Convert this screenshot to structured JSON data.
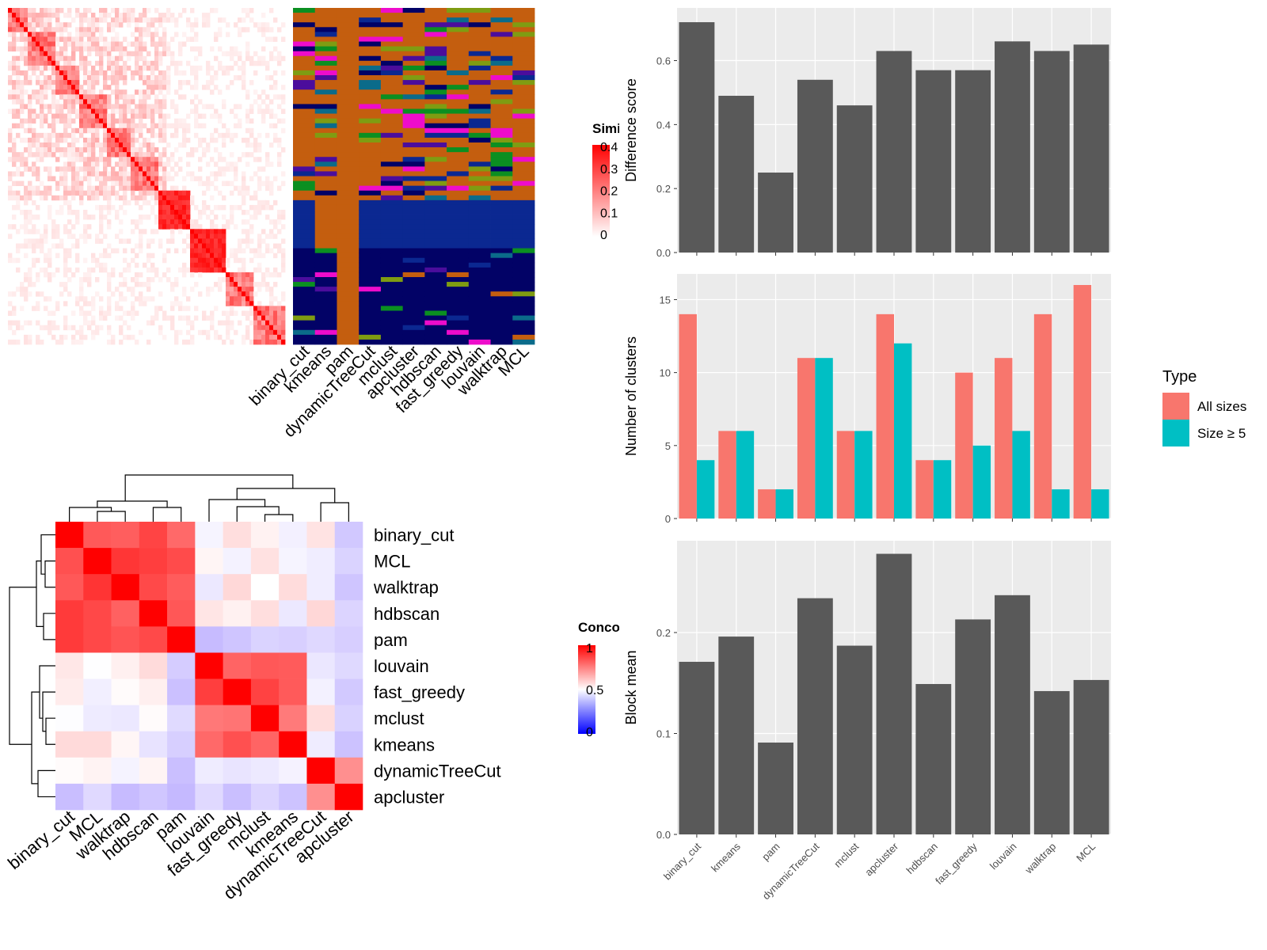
{
  "methods": [
    "binary_cut",
    "kmeans",
    "pam",
    "dynamicTreeCut",
    "mclust",
    "apcluster",
    "hdbscan",
    "fast_greedy",
    "louvain",
    "walktrap",
    "MCL"
  ],
  "colors": {
    "bar_gray": "#595959",
    "panel_bg": "#ebebeb",
    "grid": "#ffffff",
    "all_sizes": "#f8766d",
    "size_ge5": "#00bfc4",
    "heat_red": "#ff0000",
    "heat_blue": "#0000ff",
    "cluster_orange": "#c45e0f",
    "cluster_olive": "#7f9c12",
    "cluster_navy": "#0b2891",
    "cluster_darknavy": "#020266",
    "cluster_magenta": "#ee0ccb",
    "cluster_purple": "#4b0d9c",
    "cluster_teal": "#0b6b8a",
    "cluster_green": "#0b8f21"
  },
  "similarity_heatmap": {
    "legend_title": "Similarity",
    "legend_ticks": [
      "0",
      "0.1",
      "0.2",
      "0.3",
      "0.4"
    ]
  },
  "concordance_heatmap": {
    "legend_title": "Concordance",
    "legend_ticks": [
      "0",
      "0.5",
      "1"
    ],
    "order": [
      "binary_cut",
      "MCL",
      "walktrap",
      "hdbscan",
      "pam",
      "louvain",
      "fast_greedy",
      "mclust",
      "kmeans",
      "dynamicTreeCut",
      "apcluster"
    ]
  },
  "chart_data": [
    {
      "type": "bar",
      "categories": [
        "binary_cut",
        "kmeans",
        "pam",
        "dynamicTreeCut",
        "mclust",
        "apcluster",
        "hdbscan",
        "fast_greedy",
        "louvain",
        "walktrap",
        "MCL"
      ],
      "values": [
        0.72,
        0.49,
        0.25,
        0.54,
        0.46,
        0.63,
        0.57,
        0.57,
        0.66,
        0.63,
        0.65
      ],
      "ylabel": "Difference score",
      "ylim": [
        0,
        0.73
      ],
      "yticks": [
        "0.0",
        "0.2",
        "0.4",
        "0.6"
      ],
      "grid": true
    },
    {
      "type": "bar",
      "categories": [
        "binary_cut",
        "kmeans",
        "pam",
        "dynamicTreeCut",
        "mclust",
        "apcluster",
        "hdbscan",
        "fast_greedy",
        "louvain",
        "walktrap",
        "MCL"
      ],
      "series": [
        {
          "name": "All sizes",
          "values": [
            14,
            6,
            2,
            11,
            6,
            14,
            4,
            10,
            11,
            14,
            16
          ]
        },
        {
          "name": "Size ≥ 5",
          "values": [
            4,
            6,
            2,
            11,
            6,
            12,
            4,
            5,
            6,
            2,
            2
          ]
        }
      ],
      "ylabel": "Number of clusters",
      "ylim": [
        0,
        16
      ],
      "yticks": [
        "0",
        "5",
        "10",
        "15"
      ],
      "legend_title": "Type",
      "legend_position": "right",
      "grid": true
    },
    {
      "type": "bar",
      "categories": [
        "binary_cut",
        "kmeans",
        "pam",
        "dynamicTreeCut",
        "mclust",
        "apcluster",
        "hdbscan",
        "fast_greedy",
        "louvain",
        "walktrap",
        "MCL"
      ],
      "values": [
        0.171,
        0.196,
        0.091,
        0.234,
        0.187,
        0.278,
        0.149,
        0.213,
        0.237,
        0.142,
        0.153
      ],
      "ylabel": "Block mean",
      "ylim": [
        0,
        0.28
      ],
      "yticks": [
        "0.0",
        "0.1",
        "0.2"
      ],
      "grid": true
    }
  ]
}
